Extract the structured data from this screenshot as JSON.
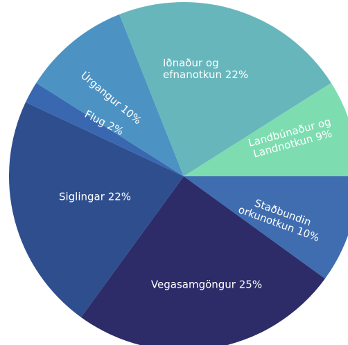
{
  "chart_data": {
    "type": "pie",
    "categories": [
      "Staðbundin orkunotkun",
      "Vegasamgöngur",
      "Siglingar",
      "Flug",
      "Úrgangur",
      "Iðnaður og efnanotkun",
      "Landbúnaður og Landnotkun"
    ],
    "values": [
      10,
      25,
      22,
      2,
      10,
      22,
      9
    ],
    "value_labels": [
      "10%",
      "25%",
      "22%",
      "2%",
      "10%",
      "22%",
      "9%"
    ],
    "colors": [
      "#3f6db0",
      "#2d2c68",
      "#2f4e8e",
      "#3a68b0",
      "#4c93c4",
      "#67b6bc",
      "#7edcb1"
    ]
  }
}
